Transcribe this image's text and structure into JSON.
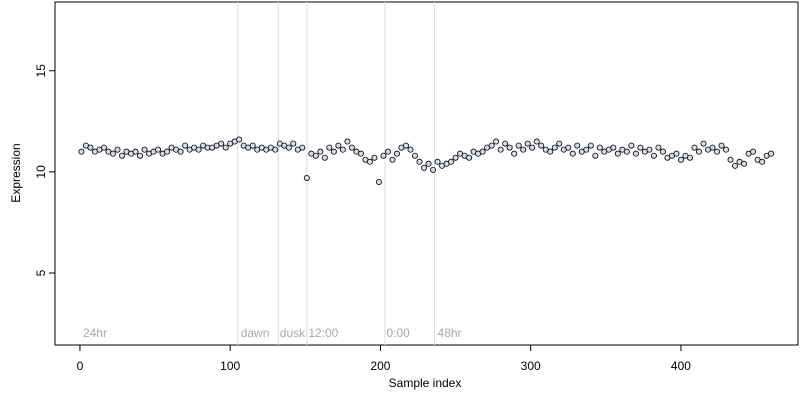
{
  "chart_data": {
    "type": "scatter",
    "xlabel": "Sample index",
    "ylabel": "Expression",
    "xlim": [
      -16.6,
      477.9
    ],
    "ylim": [
      1.44,
      18.4
    ],
    "xticks": [
      0,
      100,
      200,
      300,
      400
    ],
    "yticks": [
      5,
      10,
      15
    ],
    "point_color": "#d6dde6",
    "vlines": [
      105,
      132,
      151,
      203,
      236
    ],
    "annotations": [
      {
        "x": 2,
        "y": 2,
        "label": "24hr"
      },
      {
        "x": 107,
        "y": 2,
        "label": "dawn"
      },
      {
        "x": 133,
        "y": 2,
        "label": "dusk"
      },
      {
        "x": 152,
        "y": 2,
        "label": "12:00"
      },
      {
        "x": 204,
        "y": 2,
        "label": "0:00"
      },
      {
        "x": 238,
        "y": 2,
        "label": "48hr"
      }
    ],
    "x": [
      1,
      4,
      7,
      10,
      13,
      16,
      19,
      22,
      25,
      28,
      31,
      34,
      37,
      40,
      43,
      46,
      49,
      52,
      55,
      58,
      61,
      64,
      67,
      70,
      73,
      76,
      79,
      82,
      85,
      88,
      91,
      94,
      97,
      100,
      103,
      106,
      109,
      112,
      115,
      118,
      121,
      124,
      127,
      130,
      133,
      136,
      139,
      142,
      145,
      148,
      151,
      154,
      157,
      160,
      163,
      166,
      169,
      172,
      175,
      178,
      181,
      184,
      187,
      190,
      193,
      196,
      199,
      202,
      205,
      208,
      211,
      214,
      217,
      220,
      223,
      226,
      229,
      232,
      235,
      238,
      241,
      244,
      247,
      250,
      253,
      256,
      259,
      262,
      265,
      268,
      271,
      274,
      277,
      280,
      283,
      286,
      289,
      292,
      295,
      298,
      301,
      304,
      307,
      310,
      313,
      316,
      319,
      322,
      325,
      328,
      331,
      334,
      337,
      340,
      343,
      346,
      349,
      352,
      355,
      358,
      361,
      364,
      367,
      370,
      373,
      376,
      379,
      382,
      385,
      388,
      391,
      394,
      397,
      400,
      403,
      406,
      409,
      412,
      415,
      418,
      421,
      424,
      427,
      430,
      433,
      436,
      439,
      442,
      445,
      448,
      451,
      454,
      457,
      460
    ],
    "values": [
      11.0,
      11.3,
      11.2,
      11.0,
      11.1,
      11.2,
      11.0,
      10.9,
      11.1,
      10.8,
      11.0,
      10.9,
      11.0,
      10.8,
      11.1,
      10.9,
      11.0,
      11.1,
      10.9,
      11.0,
      11.2,
      11.1,
      11.0,
      11.3,
      11.1,
      11.2,
      11.1,
      11.3,
      11.2,
      11.2,
      11.3,
      11.4,
      11.2,
      11.4,
      11.5,
      11.6,
      11.3,
      11.2,
      11.3,
      11.1,
      11.2,
      11.1,
      11.2,
      11.1,
      11.4,
      11.3,
      11.2,
      11.4,
      11.1,
      11.2,
      9.7,
      10.9,
      10.8,
      11.0,
      10.7,
      11.2,
      11.0,
      11.3,
      11.1,
      11.5,
      11.2,
      11.0,
      10.9,
      10.6,
      10.5,
      10.7,
      9.5,
      10.8,
      11.0,
      10.6,
      10.9,
      11.2,
      11.3,
      11.1,
      10.8,
      10.5,
      10.2,
      10.4,
      10.1,
      10.5,
      10.3,
      10.4,
      10.5,
      10.7,
      10.9,
      10.8,
      10.7,
      11.0,
      10.9,
      11.0,
      11.2,
      11.3,
      11.5,
      11.1,
      11.4,
      11.2,
      10.9,
      11.3,
      11.1,
      11.4,
      11.2,
      11.5,
      11.3,
      11.1,
      11.0,
      11.2,
      11.4,
      11.1,
      11.2,
      10.9,
      11.3,
      11.0,
      11.1,
      11.3,
      10.8,
      11.2,
      11.0,
      11.1,
      11.2,
      10.9,
      11.1,
      11.0,
      11.3,
      10.9,
      11.2,
      11.0,
      11.1,
      10.8,
      11.2,
      11.0,
      10.7,
      10.8,
      10.9,
      10.6,
      10.8,
      10.7,
      11.2,
      11.0,
      11.4,
      11.1,
      11.2,
      11.0,
      11.3,
      11.1,
      10.6,
      10.3,
      10.5,
      10.4,
      10.9,
      11.0,
      10.6,
      10.5,
      10.8,
      10.9
    ]
  }
}
